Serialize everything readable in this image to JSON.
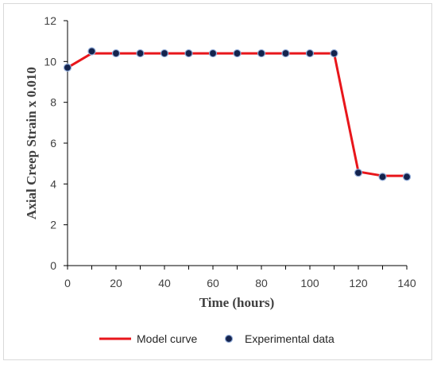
{
  "chart_data": {
    "type": "line",
    "title": "",
    "xlabel": "Time (hours)",
    "ylabel": "Axial Creep Strain x 0.010",
    "xlim": [
      0,
      140
    ],
    "ylim": [
      0,
      12
    ],
    "x_ticks": [
      0,
      20,
      40,
      60,
      80,
      100,
      120,
      140
    ],
    "y_ticks": [
      0,
      2,
      4,
      6,
      8,
      10,
      12
    ],
    "grid": false,
    "legend_position": "bottom",
    "series": [
      {
        "name": "Model curve",
        "style": "line",
        "color": "#e8161b",
        "x": [
          0,
          10,
          20,
          30,
          40,
          50,
          60,
          70,
          80,
          90,
          100,
          110,
          120,
          130,
          140
        ],
        "y": [
          9.7,
          10.4,
          10.4,
          10.4,
          10.4,
          10.4,
          10.4,
          10.4,
          10.4,
          10.4,
          10.4,
          10.4,
          4.6,
          4.4,
          4.4
        ]
      },
      {
        "name": "Experimental data",
        "style": "markers",
        "color": "#14234d",
        "x": [
          0,
          10,
          20,
          30,
          40,
          50,
          60,
          70,
          80,
          90,
          100,
          110,
          120,
          130,
          140
        ],
        "y": [
          9.7,
          10.5,
          10.4,
          10.4,
          10.4,
          10.4,
          10.4,
          10.4,
          10.4,
          10.4,
          10.4,
          10.4,
          4.55,
          4.35,
          4.35
        ]
      }
    ]
  }
}
